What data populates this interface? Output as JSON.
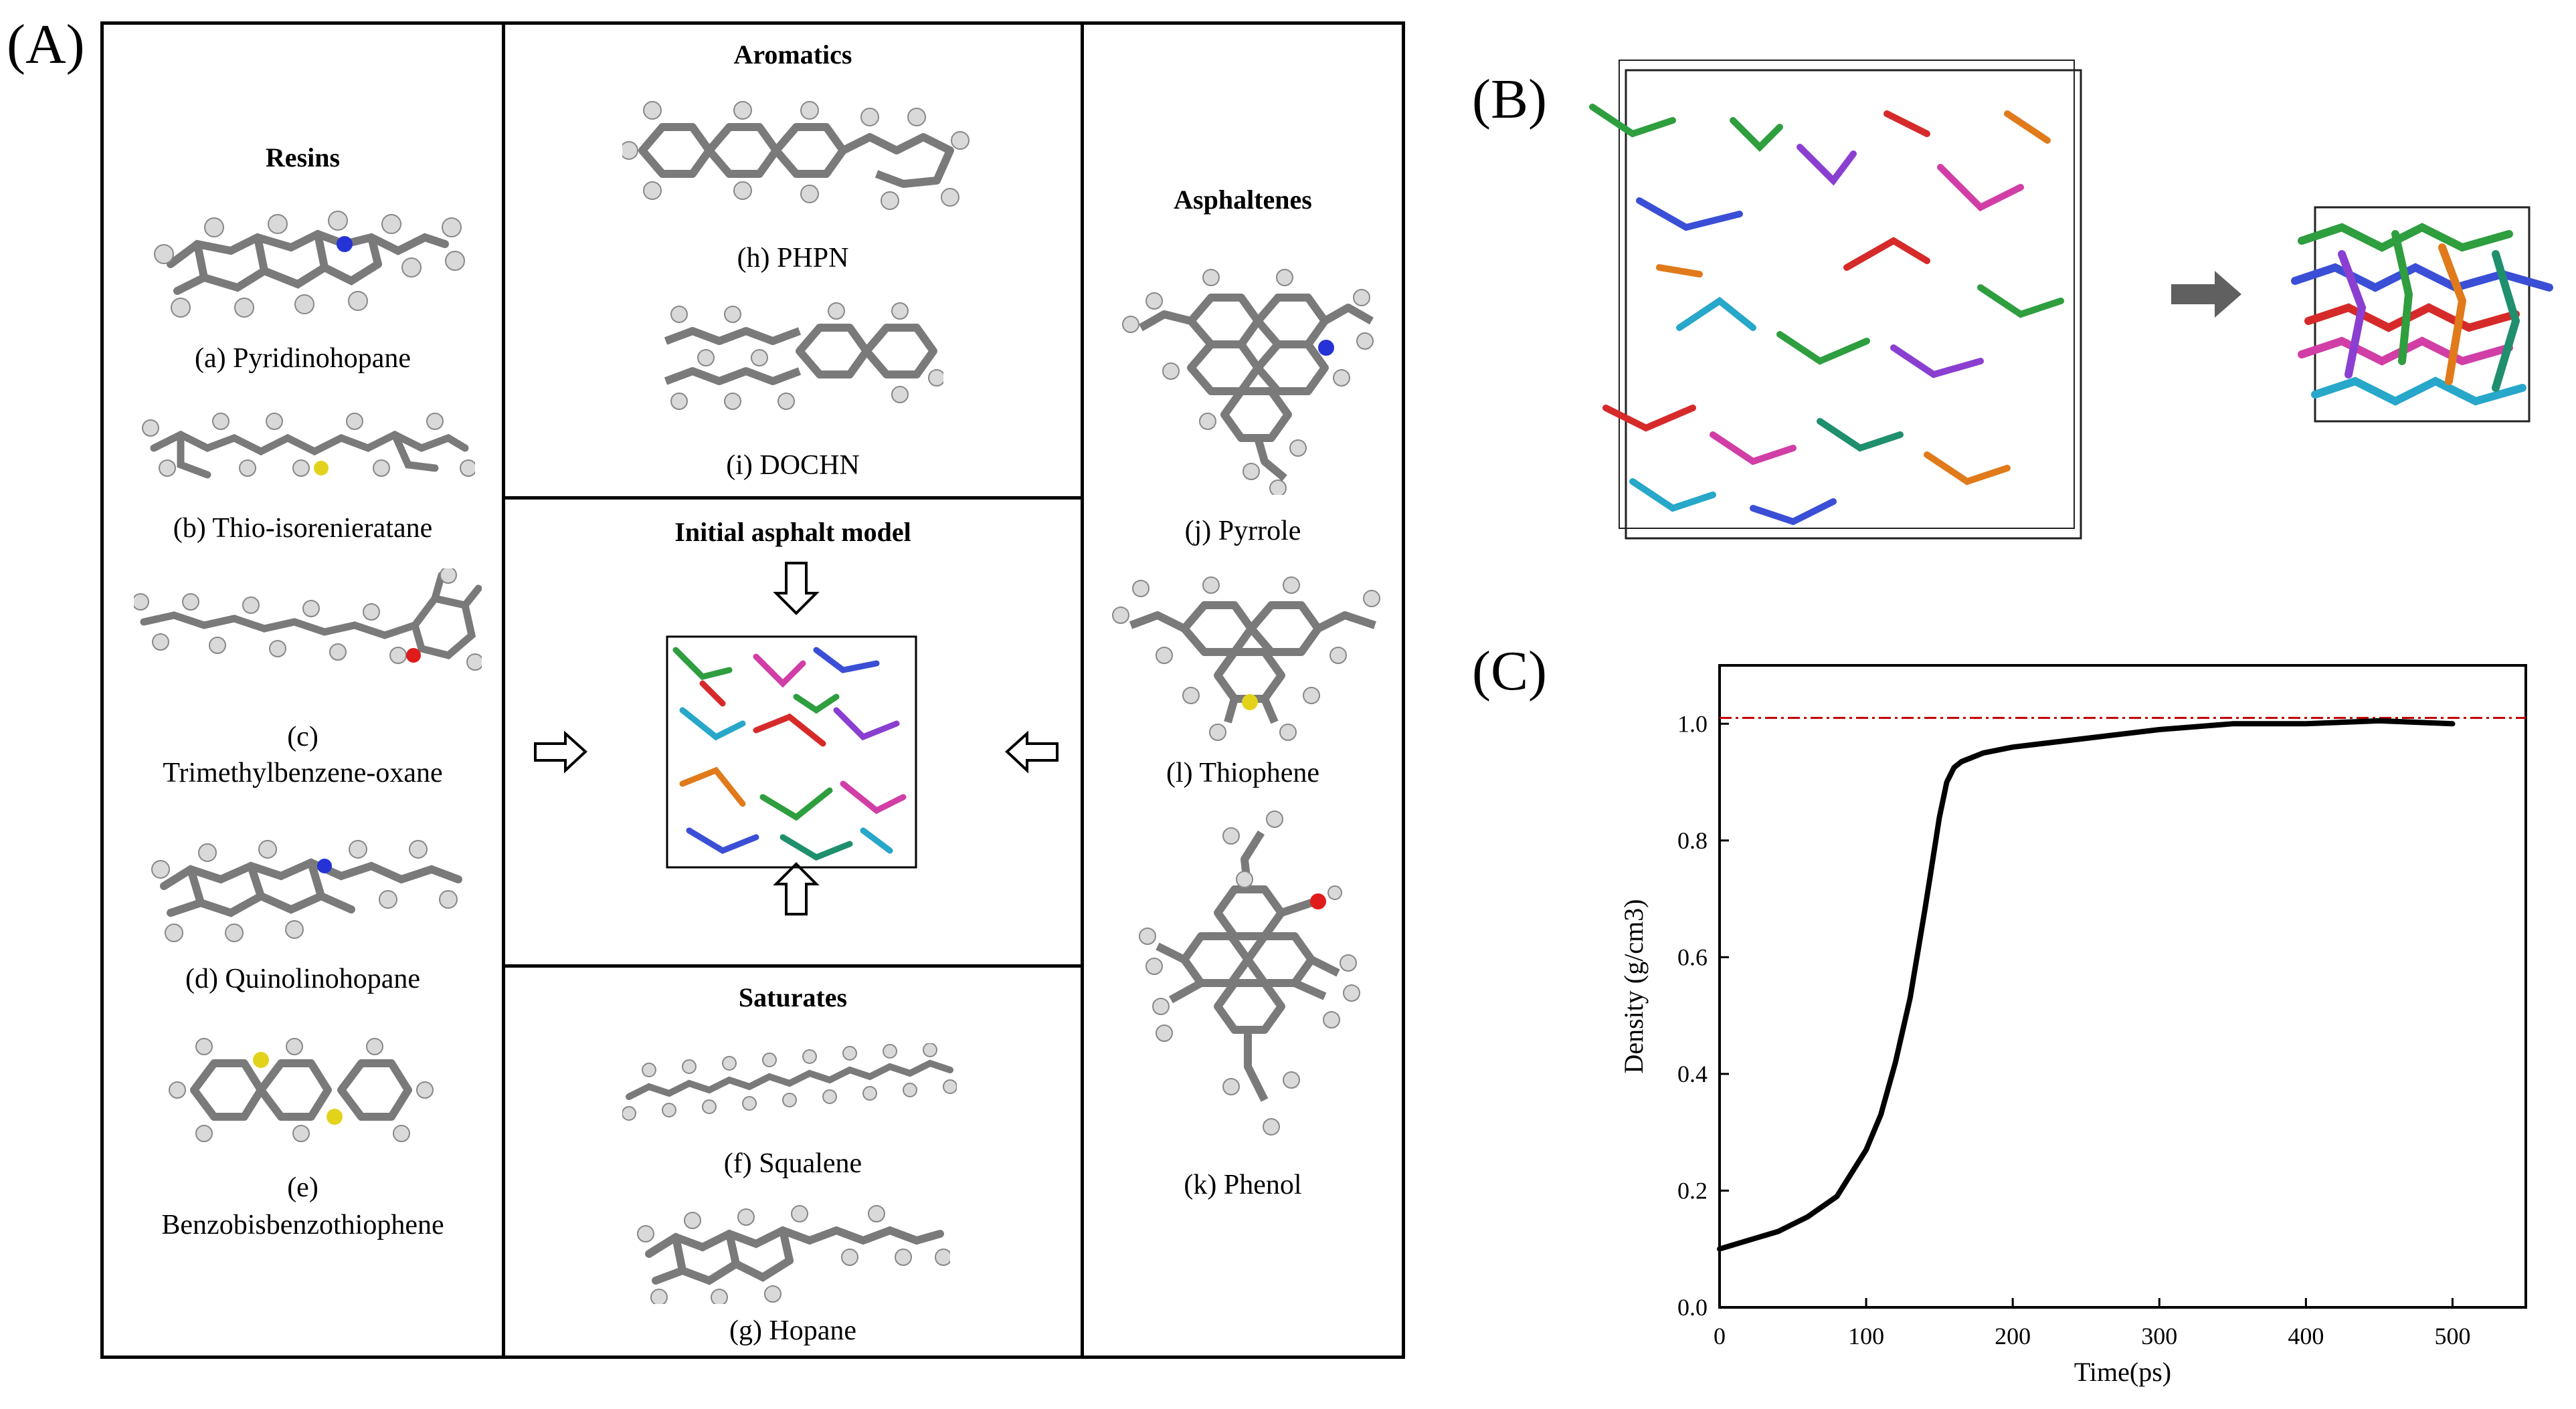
{
  "panel_labels": {
    "a": "(A)",
    "b": "(B)",
    "c": "(C)"
  },
  "resins": {
    "heading": "Resins",
    "items": [
      {
        "label": "(a)  Pyridinohopane"
      },
      {
        "label": "(b) Thio-isorenieratane"
      },
      {
        "label": "(c)",
        "label2": "Trimethylbenzene-oxane"
      },
      {
        "label": "(d) Quinolinohopane"
      },
      {
        "label": "(e)",
        "label2": "Benzobisbenzothiophene"
      }
    ]
  },
  "aromatics": {
    "heading": "Aromatics",
    "items": [
      {
        "label": "(h) PHPN"
      },
      {
        "label": "(i) DOCHN"
      }
    ]
  },
  "initial_model": {
    "heading": "Initial asphalt model"
  },
  "saturates": {
    "heading": "Saturates",
    "items": [
      {
        "label": "(f) Squalene"
      },
      {
        "label": "(g) Hopane"
      }
    ]
  },
  "asphaltenes": {
    "heading": "Asphaltenes",
    "items": [
      {
        "label": "(j) Pyrrole"
      },
      {
        "label": "(l) Thiophene"
      },
      {
        "label": "(k) Phenol"
      }
    ]
  },
  "colors": {
    "atom_carbon": "#7a7a7a",
    "atom_hydrogen": "#d9d9d9",
    "nitrogen": "#2432d6",
    "sulfur": "#e3d21a",
    "oxygen": "#e01b1b",
    "reference_line": "#c00000"
  },
  "chart_data": {
    "type": "line",
    "xlabel": "Time(ps)",
    "ylabel": "Density (g/cm3)",
    "xlim": [
      0,
      550
    ],
    "ylim": [
      0,
      1.1
    ],
    "x_ticks": [
      0,
      100,
      200,
      300,
      400,
      500
    ],
    "y_ticks": [
      0.0,
      0.2,
      0.4,
      0.6,
      0.8,
      1.0
    ],
    "x_tick_labels": [
      "0",
      "100",
      "200",
      "300",
      "400",
      "500"
    ],
    "y_tick_labels": [
      "0.0",
      "0.2",
      "0.4",
      "0.6",
      "0.8",
      "1.0"
    ],
    "reference_line_y": 1.01,
    "series": [
      {
        "x": [
          0,
          20,
          40,
          60,
          80,
          100,
          110,
          120,
          130,
          140,
          145,
          150,
          155,
          160,
          165,
          170,
          180,
          200,
          250,
          300,
          350,
          400,
          450,
          500
        ],
        "y": [
          0.1,
          0.115,
          0.13,
          0.155,
          0.19,
          0.27,
          0.33,
          0.42,
          0.53,
          0.68,
          0.76,
          0.84,
          0.9,
          0.925,
          0.935,
          0.94,
          0.95,
          0.96,
          0.975,
          0.99,
          1.0,
          1.0,
          1.005,
          1.0
        ]
      }
    ]
  }
}
